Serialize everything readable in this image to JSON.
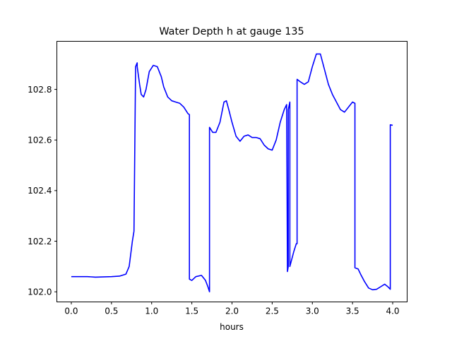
{
  "chart_data": {
    "type": "line",
    "title": "Water Depth h at gauge 135",
    "xlabel": "hours",
    "ylabel": "",
    "xlim": [
      -0.18,
      4.18
    ],
    "ylim": [
      101.96,
      102.99
    ],
    "xticks": [
      0.0,
      0.5,
      1.0,
      1.5,
      2.0,
      2.5,
      3.0,
      3.5,
      4.0
    ],
    "xtick_labels": [
      "0.0",
      "0.5",
      "1.0",
      "1.5",
      "2.0",
      "2.5",
      "3.0",
      "3.5",
      "4.0"
    ],
    "yticks": [
      102.0,
      102.2,
      102.4,
      102.6,
      102.8
    ],
    "ytick_labels": [
      "102.0",
      "102.2",
      "102.4",
      "102.6",
      "102.8"
    ],
    "grid": false,
    "series": [
      {
        "color": "#0000ff",
        "x": [
          0.0,
          0.2,
          0.3,
          0.5,
          0.6,
          0.68,
          0.72,
          0.74,
          0.76,
          0.78,
          0.8,
          0.82,
          0.82,
          0.85,
          0.87,
          0.9,
          0.93,
          0.97,
          1.02,
          1.07,
          1.12,
          1.15,
          1.2,
          1.25,
          1.3,
          1.35,
          1.4,
          1.45,
          1.47,
          1.47,
          1.5,
          1.55,
          1.62,
          1.67,
          1.7,
          1.72,
          1.72,
          1.76,
          1.8,
          1.85,
          1.9,
          1.93,
          1.96,
          2.0,
          2.05,
          2.1,
          2.15,
          2.2,
          2.25,
          2.3,
          2.35,
          2.4,
          2.45,
          2.5,
          2.55,
          2.6,
          2.65,
          2.68,
          2.69,
          2.7,
          2.7,
          2.72,
          2.72,
          2.77,
          2.8,
          2.81,
          2.81,
          2.85,
          2.9,
          2.95,
          3.0,
          3.05,
          3.1,
          3.15,
          3.2,
          3.25,
          3.3,
          3.35,
          3.4,
          3.45,
          3.5,
          3.53,
          3.53,
          3.57,
          3.6,
          3.65,
          3.7,
          3.75,
          3.8,
          3.85,
          3.9,
          3.94,
          3.97,
          3.97,
          4.0
        ],
        "values": [
          102.06,
          102.06,
          102.058,
          102.06,
          102.062,
          102.07,
          102.1,
          102.15,
          102.2,
          102.24,
          102.89,
          102.905,
          102.89,
          102.82,
          102.78,
          102.77,
          102.8,
          102.87,
          102.895,
          102.89,
          102.85,
          102.81,
          102.77,
          102.755,
          102.75,
          102.745,
          102.73,
          102.705,
          102.7,
          102.05,
          102.045,
          102.06,
          102.065,
          102.045,
          102.02,
          102.0,
          102.65,
          102.63,
          102.63,
          102.67,
          102.75,
          102.755,
          102.72,
          102.67,
          102.615,
          102.595,
          102.615,
          102.62,
          102.61,
          102.61,
          102.605,
          102.58,
          102.565,
          102.56,
          102.6,
          102.67,
          102.72,
          102.74,
          102.08,
          102.1,
          102.72,
          102.75,
          102.1,
          102.16,
          102.19,
          102.19,
          102.84,
          102.83,
          102.82,
          102.83,
          102.89,
          102.94,
          102.94,
          102.88,
          102.82,
          102.78,
          102.75,
          102.72,
          102.71,
          102.73,
          102.75,
          102.745,
          102.095,
          102.09,
          102.07,
          102.04,
          102.015,
          102.008,
          102.01,
          102.02,
          102.03,
          102.02,
          102.01,
          102.66,
          102.658
        ]
      }
    ]
  }
}
